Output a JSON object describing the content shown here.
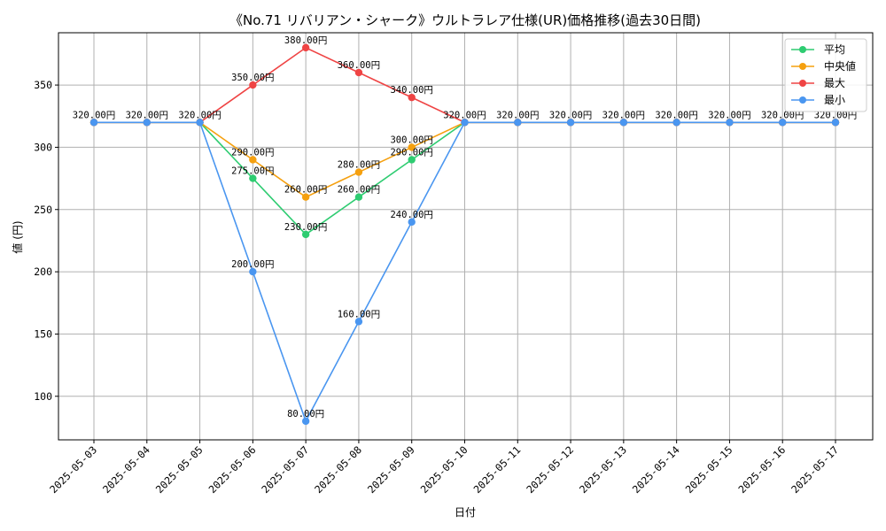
{
  "chart_data": {
    "type": "line",
    "title": "《No.71 リバリアン・シャーク》ウルトラレア仕様(UR)価格推移(過去30日間)",
    "xlabel": "日付",
    "ylabel": "値 (円)",
    "ylim": [
      65,
      392
    ],
    "yticks": [
      100,
      150,
      200,
      250,
      300,
      350
    ],
    "grid": true,
    "legend_position": "top-right",
    "value_suffix": "円",
    "categories": [
      "2025-05-03",
      "2025-05-04",
      "2025-05-05",
      "2025-05-06",
      "2025-05-07",
      "2025-05-08",
      "2025-05-09",
      "2025-05-10",
      "2025-05-11",
      "2025-05-12",
      "2025-05-13",
      "2025-05-14",
      "2025-05-15",
      "2025-05-16",
      "2025-05-17"
    ],
    "series": [
      {
        "name": "平均",
        "color": "#2ecc71",
        "values": [
          320,
          320,
          320,
          275,
          230,
          260,
          290,
          320,
          320,
          320,
          320,
          320,
          320,
          320,
          320
        ],
        "labeled": [
          false,
          false,
          false,
          true,
          true,
          true,
          true,
          false,
          false,
          false,
          false,
          false,
          false,
          false,
          false
        ]
      },
      {
        "name": "中央値",
        "color": "#f5a00f",
        "values": [
          320,
          320,
          320,
          290,
          260,
          280,
          300,
          320,
          320,
          320,
          320,
          320,
          320,
          320,
          320
        ],
        "labeled": [
          false,
          false,
          false,
          true,
          true,
          true,
          true,
          false,
          false,
          false,
          false,
          false,
          false,
          false,
          false
        ]
      },
      {
        "name": "最大",
        "color": "#ef4444",
        "values": [
          320,
          320,
          320,
          350,
          380,
          360,
          340,
          320,
          320,
          320,
          320,
          320,
          320,
          320,
          320
        ],
        "labeled": [
          false,
          false,
          false,
          true,
          true,
          true,
          true,
          false,
          false,
          false,
          false,
          false,
          false,
          false,
          false
        ]
      },
      {
        "name": "最小",
        "color": "#4a96f0",
        "values": [
          320,
          320,
          320,
          200,
          80,
          160,
          240,
          320,
          320,
          320,
          320,
          320,
          320,
          320,
          320
        ],
        "labeled": [
          true,
          true,
          true,
          true,
          true,
          true,
          true,
          true,
          true,
          true,
          true,
          true,
          true,
          true,
          true
        ]
      }
    ]
  }
}
